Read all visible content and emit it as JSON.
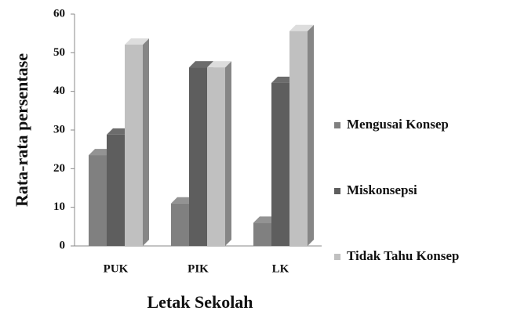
{
  "chart_data": {
    "type": "bar",
    "x_label": "Letak Sekolah",
    "y_label": "Rata-rata persentase",
    "categories": [
      "PUK",
      "PIK",
      "LK"
    ],
    "series": [
      {
        "name": "Mengusai Konsep",
        "color": "#808080",
        "values": [
          23.5,
          11,
          6
        ]
      },
      {
        "name": "Miskonsepsi",
        "color": "#5e5e5e",
        "values": [
          28.8,
          46.2,
          42.2
        ]
      },
      {
        "name": "Tidak Tahu Konsep",
        "color": "#c0c0c0",
        "values": [
          52.1,
          46.2,
          55.6
        ]
      }
    ],
    "ylim": [
      0,
      60
    ],
    "yticks": [
      0,
      10,
      20,
      30,
      40,
      50,
      60
    ],
    "legend": "right"
  }
}
